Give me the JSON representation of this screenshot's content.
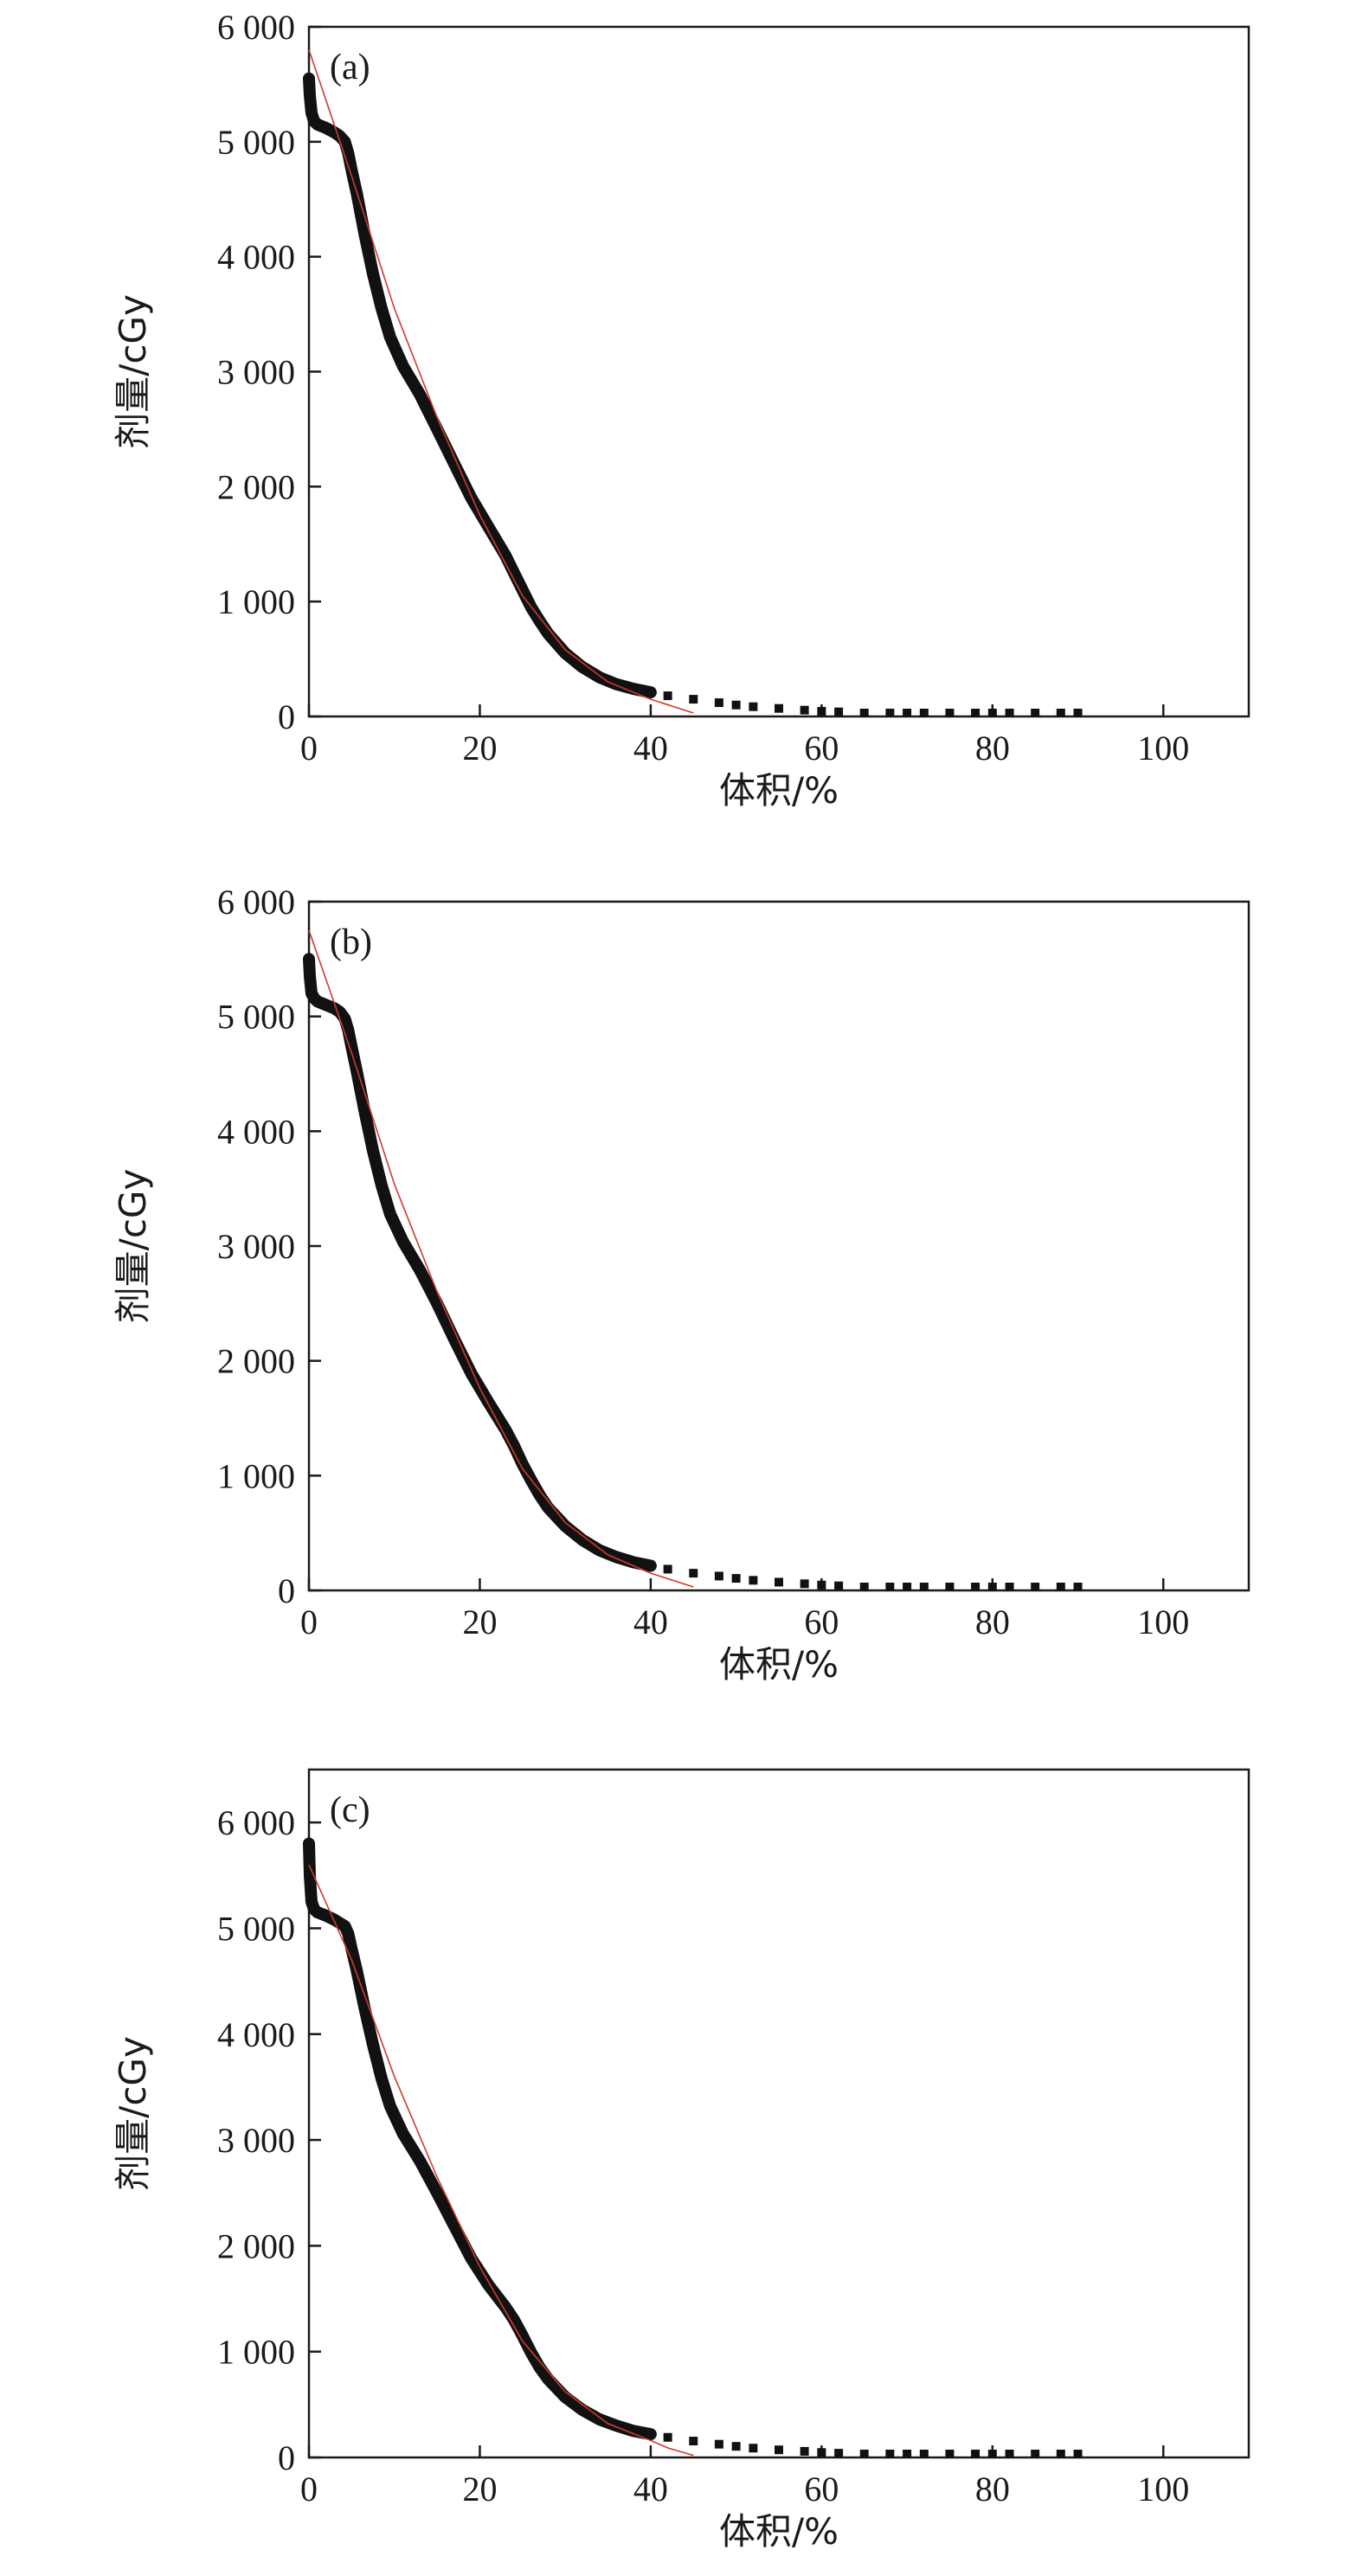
{
  "chart_data": [
    {
      "type": "line",
      "panel_label": "(a)",
      "xlabel": "体积/%",
      "ylabel": "剂量/cGy",
      "xlim": [
        0,
        110
      ],
      "ylim": [
        0,
        6000
      ],
      "x_ticks": [
        0,
        20,
        40,
        60,
        80,
        100
      ],
      "x_tick_labels": [
        "0",
        "20",
        "40",
        "60",
        "80",
        "100"
      ],
      "y_ticks": [
        0,
        1000,
        2000,
        3000,
        4000,
        5000,
        6000
      ],
      "y_tick_labels": [
        "0",
        "1 000",
        "2 000",
        "3 000",
        "4 000",
        "5 000",
        "6 000"
      ],
      "grid": false,
      "series": [
        {
          "role": "measured",
          "color": "#111111",
          "x": [
            0,
            0.1,
            0.3,
            0.6,
            1,
            2,
            3,
            3.6,
            4.2,
            4.6,
            5,
            5.6,
            6.5,
            7.5,
            8.5,
            9.5,
            11,
            13,
            15,
            17,
            19,
            21,
            23,
            24,
            25,
            26,
            27,
            28,
            30,
            32,
            34,
            36,
            38,
            40,
            42,
            45,
            48,
            50,
            52,
            55,
            58,
            60,
            62,
            65,
            68,
            70,
            72,
            75,
            78,
            80,
            82,
            85,
            88,
            90
          ],
          "y": [
            5550,
            5400,
            5250,
            5180,
            5150,
            5120,
            5080,
            5050,
            5000,
            4900,
            4750,
            4550,
            4200,
            3850,
            3550,
            3300,
            3050,
            2800,
            2500,
            2200,
            1900,
            1650,
            1400,
            1250,
            1100,
            950,
            830,
            720,
            550,
            430,
            340,
            280,
            240,
            210,
            180,
            150,
            120,
            100,
            85,
            70,
            55,
            45,
            40,
            30,
            22,
            18,
            14,
            10,
            7,
            5,
            4,
            3,
            2,
            2
          ]
        },
        {
          "role": "fit",
          "color": "#d03a2a",
          "x": [
            0,
            5,
            10,
            15,
            20,
            25,
            30,
            35,
            40,
            45
          ],
          "y": [
            5800,
            4700,
            3550,
            2600,
            1750,
            1050,
            580,
            300,
            150,
            30
          ]
        }
      ]
    },
    {
      "type": "line",
      "panel_label": "(b)",
      "xlabel": "体积/%",
      "ylabel": "剂量/cGy",
      "xlim": [
        0,
        110
      ],
      "ylim": [
        0,
        6000
      ],
      "x_ticks": [
        0,
        20,
        40,
        60,
        80,
        100
      ],
      "x_tick_labels": [
        "0",
        "20",
        "40",
        "60",
        "80",
        "100"
      ],
      "y_ticks": [
        0,
        1000,
        2000,
        3000,
        4000,
        5000,
        6000
      ],
      "y_tick_labels": [
        "0",
        "1 000",
        "2 000",
        "3 000",
        "4 000",
        "5 000",
        "6 000"
      ],
      "grid": false,
      "series": [
        {
          "role": "measured",
          "color": "#111111",
          "x": [
            0,
            0.1,
            0.3,
            0.6,
            1,
            2,
            3,
            3.6,
            4.2,
            4.6,
            5,
            5.6,
            6.5,
            7.5,
            8.5,
            9.5,
            11,
            13,
            15,
            17,
            19,
            21,
            23,
            24,
            25,
            26,
            27,
            28,
            30,
            32,
            34,
            36,
            38,
            40,
            42,
            45,
            48,
            50,
            52,
            55,
            58,
            60,
            62,
            65,
            68,
            70,
            72,
            75,
            78,
            80,
            82,
            85,
            88,
            90
          ],
          "y": [
            5500,
            5350,
            5200,
            5160,
            5130,
            5100,
            5070,
            5040,
            4980,
            4880,
            4730,
            4520,
            4180,
            3830,
            3530,
            3280,
            3040,
            2790,
            2500,
            2190,
            1890,
            1640,
            1400,
            1260,
            1100,
            960,
            830,
            720,
            560,
            440,
            350,
            290,
            245,
            215,
            185,
            150,
            125,
            105,
            88,
            72,
            58,
            47,
            40,
            30,
            23,
            18,
            14,
            10,
            7,
            5,
            4,
            3,
            2,
            2
          ]
        },
        {
          "role": "fit",
          "color": "#d03a2a",
          "x": [
            0,
            5,
            10,
            15,
            20,
            25,
            30,
            35,
            40,
            45
          ],
          "y": [
            5750,
            4680,
            3540,
            2600,
            1760,
            1060,
            590,
            310,
            150,
            30
          ]
        }
      ]
    },
    {
      "type": "line",
      "panel_label": "(c)",
      "xlabel": "体积/%",
      "ylabel": "剂量/cGy",
      "xlim": [
        0,
        110
      ],
      "ylim": [
        0,
        6500
      ],
      "x_ticks": [
        0,
        20,
        40,
        60,
        80,
        100
      ],
      "x_tick_labels": [
        "0",
        "20",
        "40",
        "60",
        "80",
        "100"
      ],
      "y_ticks": [
        0,
        1000,
        2000,
        3000,
        4000,
        5000,
        6000
      ],
      "y_tick_labels": [
        "0",
        "1 000",
        "2 000",
        "3 000",
        "4 000",
        "5 000",
        "6 000"
      ],
      "grid": false,
      "series": [
        {
          "role": "measured",
          "color": "#111111",
          "x": [
            0,
            0.1,
            0.3,
            0.6,
            1,
            2,
            3,
            3.6,
            4.2,
            4.6,
            5,
            5.6,
            6.5,
            7.5,
            8.5,
            9.5,
            11,
            13,
            15,
            17,
            19,
            21,
            23,
            24,
            25,
            26,
            27,
            28,
            30,
            32,
            34,
            36,
            38,
            40,
            42,
            45,
            48,
            50,
            52,
            55,
            58,
            60,
            62,
            65,
            68,
            70,
            72,
            75,
            78,
            80,
            82,
            85,
            88,
            90
          ],
          "y": [
            5800,
            5500,
            5250,
            5180,
            5150,
            5120,
            5080,
            5050,
            5020,
            4950,
            4800,
            4600,
            4250,
            3900,
            3580,
            3320,
            3060,
            2800,
            2500,
            2190,
            1880,
            1630,
            1420,
            1300,
            1150,
            990,
            850,
            740,
            570,
            450,
            360,
            300,
            250,
            220,
            190,
            155,
            125,
            105,
            88,
            72,
            58,
            47,
            40,
            30,
            23,
            18,
            14,
            10,
            7,
            5,
            4,
            3,
            2,
            2
          ]
        },
        {
          "role": "fit",
          "color": "#d03a2a",
          "x": [
            0,
            5,
            10,
            15,
            20,
            25,
            30,
            35,
            40,
            42,
            45
          ],
          "y": [
            5600,
            4700,
            3600,
            2650,
            1800,
            1100,
            620,
            320,
            160,
            90,
            20
          ]
        }
      ]
    }
  ]
}
